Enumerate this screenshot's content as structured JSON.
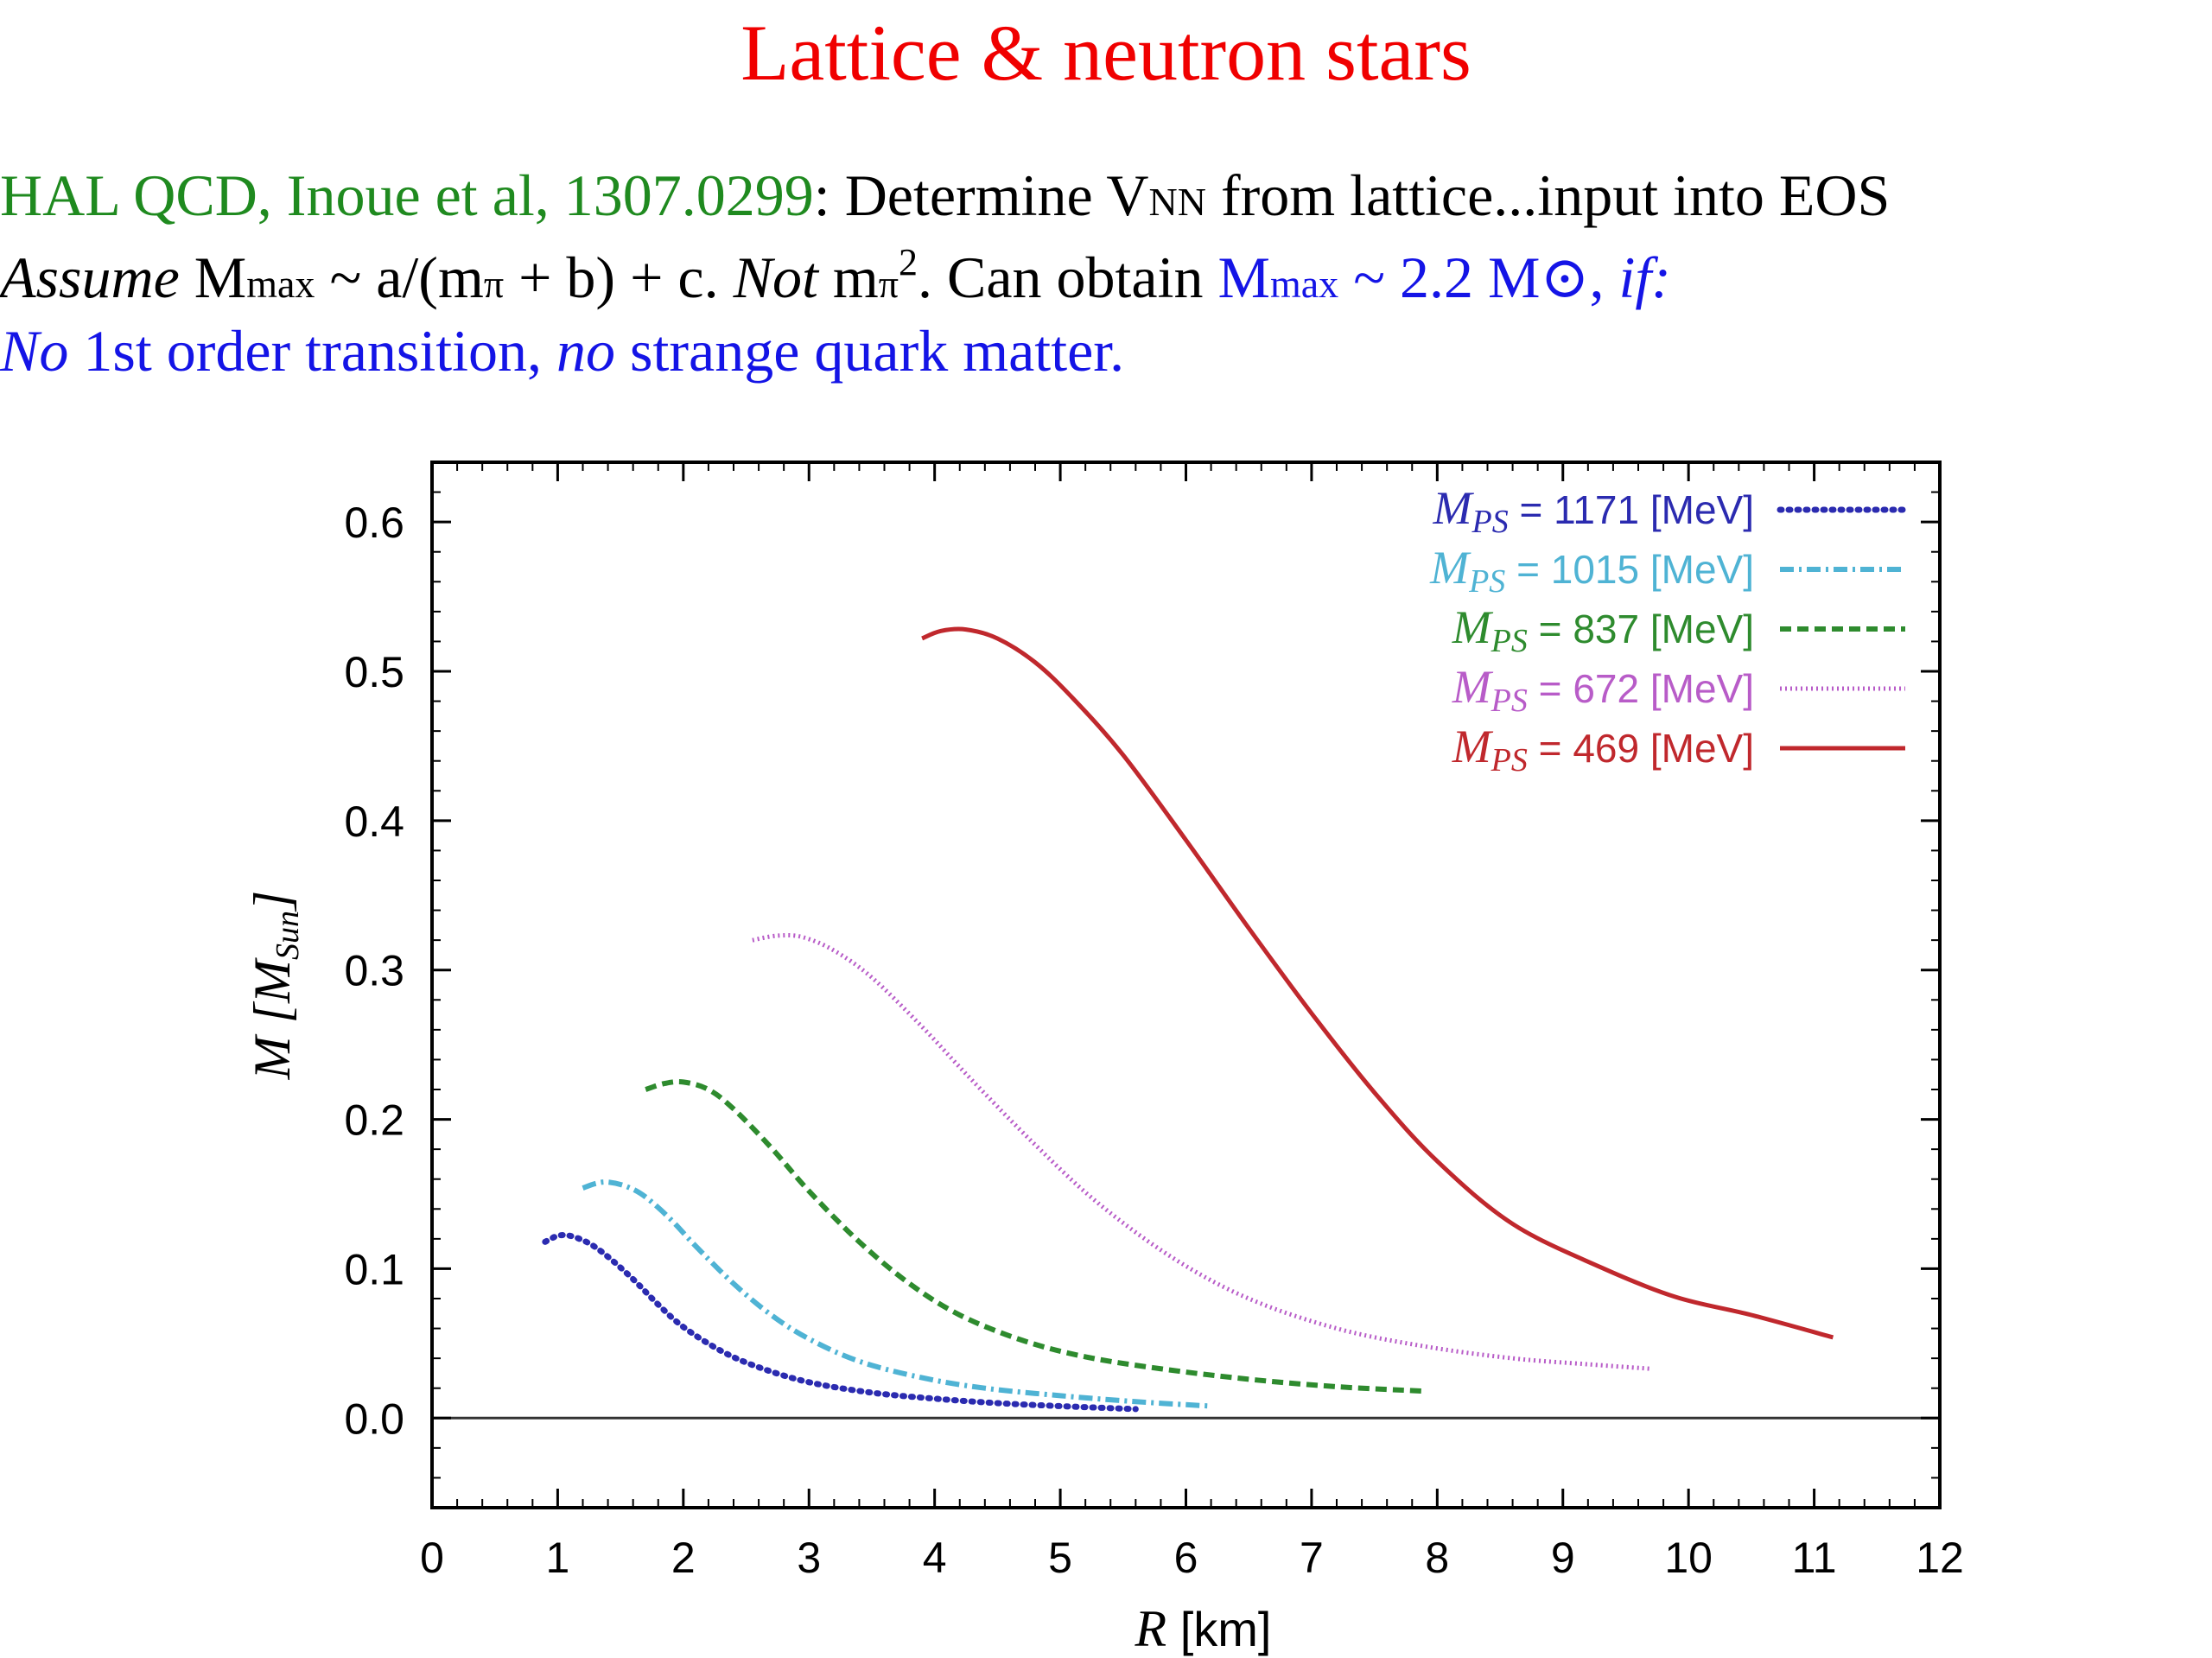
{
  "slide": {
    "title": "Lattice & neutron stars",
    "line1": {
      "ref": "HAL QCD, Inoue et al, 1307.0299",
      "colon": ":",
      "t1": " Determine V",
      "sub_nn": "NN",
      "t2": " from lattice...input into EOS"
    },
    "line2": {
      "assume": "Assume",
      "m": " M",
      "sub_max": "max",
      "t1": " ~ a/(m",
      "sub_pi1": "π",
      "t2": " + b) + c.  ",
      "not": "Not",
      "t3": " m",
      "sub_pi2": "π",
      "sup_2": "2",
      "t4": ".  Can obtain ",
      "m2": "M",
      "sub_max2": "max",
      "t5": " ~ 2.2 M",
      "sun": "⊙",
      "comma": ",",
      "if": " if:"
    },
    "line3": {
      "no1": "No",
      "t1": " 1st order transition, ",
      "no2": "no",
      "t2": " strange quark matter."
    }
  },
  "chart_data": {
    "type": "line",
    "xlabel": "R   [km]",
    "xlabel_sym": "R",
    "xlabel_unit": "[km]",
    "ylabel_sym": "M",
    "ylabel_unit_sym": "M",
    "ylabel_unit_sub": "Sun",
    "xlim": [
      0,
      12
    ],
    "ylim": [
      -0.06,
      0.64
    ],
    "x_ticks": [
      "0",
      "1",
      "2",
      "3",
      "4",
      "5",
      "6",
      "7",
      "8",
      "9",
      "10",
      "11",
      "12"
    ],
    "y_ticks": [
      "0.0",
      "0.1",
      "0.2",
      "0.3",
      "0.4",
      "0.5",
      "0.6"
    ],
    "legend_position": "top-right",
    "series": [
      {
        "name": "M_PS = 1171 [MeV]",
        "label_sym": "M",
        "label_sub": "PS",
        "label_text": " = 1171 [MeV]",
        "color": "#2b2bb0",
        "style": "dotted",
        "x": [
          0.9,
          1.0,
          1.1,
          1.25,
          1.4,
          1.6,
          1.8,
          2.0,
          2.3,
          2.6,
          3.0,
          3.5,
          4.0,
          4.5,
          5.0,
          5.6
        ],
        "y": [
          0.118,
          0.122,
          0.122,
          0.117,
          0.108,
          0.093,
          0.076,
          0.061,
          0.045,
          0.034,
          0.024,
          0.017,
          0.013,
          0.01,
          0.008,
          0.006
        ]
      },
      {
        "name": "M_PS = 1015 [MeV]",
        "label_sym": "M",
        "label_sub": "PS",
        "label_text": " = 1015 [MeV]",
        "color": "#4fb3d4",
        "style": "dashdot",
        "x": [
          1.2,
          1.3,
          1.4,
          1.55,
          1.7,
          1.9,
          2.1,
          2.4,
          2.7,
          3.0,
          3.4,
          3.9,
          4.4,
          5.0,
          5.6,
          6.2
        ],
        "y": [
          0.154,
          0.157,
          0.158,
          0.155,
          0.148,
          0.133,
          0.115,
          0.09,
          0.069,
          0.053,
          0.038,
          0.027,
          0.02,
          0.015,
          0.011,
          0.008
        ]
      },
      {
        "name": "M_PS = 837 [MeV]",
        "label_sym": "M",
        "label_sub": "PS",
        "label_text": " = 837 [MeV]",
        "color": "#2e8b2e",
        "style": "dashed",
        "x": [
          1.7,
          1.85,
          2.0,
          2.2,
          2.4,
          2.7,
          3.0,
          3.4,
          3.8,
          4.2,
          4.7,
          5.2,
          5.8,
          6.5,
          7.2,
          7.9
        ],
        "y": [
          0.22,
          0.224,
          0.225,
          0.22,
          0.207,
          0.181,
          0.152,
          0.118,
          0.09,
          0.069,
          0.052,
          0.041,
          0.033,
          0.026,
          0.021,
          0.018
        ]
      },
      {
        "name": "M_PS = 672 [MeV]",
        "label_sym": "M",
        "label_sub": "PS",
        "label_text": " = 672 [MeV]",
        "color": "#b85cc8",
        "style": "dotted-fine",
        "x": [
          2.55,
          2.75,
          2.95,
          3.2,
          3.5,
          3.9,
          4.3,
          4.8,
          5.3,
          5.9,
          6.5,
          7.2,
          7.9,
          8.6,
          9.2,
          9.7
        ],
        "y": [
          0.32,
          0.323,
          0.322,
          0.313,
          0.295,
          0.262,
          0.226,
          0.183,
          0.144,
          0.107,
          0.08,
          0.06,
          0.048,
          0.04,
          0.036,
          0.033
        ]
      },
      {
        "name": "M_PS = 469 [MeV]",
        "label_sym": "M",
        "label_sub": "PS",
        "label_text": " = 469 [MeV]",
        "color": "#c0282d",
        "style": "solid",
        "x": [
          3.9,
          4.05,
          4.25,
          4.5,
          4.8,
          5.1,
          5.5,
          6.0,
          6.5,
          7.0,
          7.5,
          8.0,
          8.6,
          9.3,
          9.9,
          10.5,
          11.15
        ],
        "y": [
          0.522,
          0.527,
          0.528,
          0.522,
          0.506,
          0.482,
          0.444,
          0.387,
          0.328,
          0.271,
          0.218,
          0.172,
          0.13,
          0.101,
          0.081,
          0.069,
          0.054
        ]
      }
    ]
  }
}
